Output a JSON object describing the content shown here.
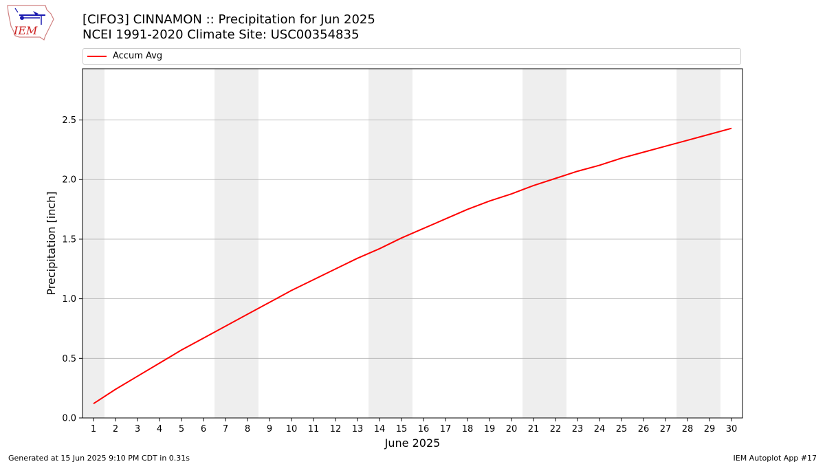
{
  "header": {
    "title_line1": "[CIFO3] CINNAMON :: Precipitation for Jun 2025",
    "title_line2": "NCEI 1991-2020 Climate Site: USC00354835"
  },
  "logo": {
    "text": "IEM",
    "icon": "iem-logo"
  },
  "footer": {
    "left": "Generated at 15 Jun 2025 9:10 PM CDT in 0.31s",
    "right": "IEM Autoplot App #17"
  },
  "colors": {
    "series": "#ff0000",
    "weekend_band": "#eeeeee",
    "grid": "#b0b0b0"
  },
  "chart_data": {
    "type": "line",
    "xlabel": "June 2025",
    "ylabel": "Precipitation [inch]",
    "xlim": [
      0.5,
      30.5
    ],
    "ylim": [
      0,
      2.93
    ],
    "x_ticks": [
      1,
      2,
      3,
      4,
      5,
      6,
      7,
      8,
      9,
      10,
      11,
      12,
      13,
      14,
      15,
      16,
      17,
      18,
      19,
      20,
      21,
      22,
      23,
      24,
      25,
      26,
      27,
      28,
      29,
      30
    ],
    "y_ticks": [
      0.0,
      0.5,
      1.0,
      1.5,
      2.0,
      2.5
    ],
    "y_tick_labels": [
      "0.0",
      "0.5",
      "1.0",
      "1.5",
      "2.0",
      "2.5"
    ],
    "grid": "y-axis on",
    "legend_position": "top, above plot",
    "weekend_days": [
      1,
      7,
      8,
      14,
      15,
      21,
      22,
      28,
      29
    ],
    "series": [
      {
        "name": "Accum Avg",
        "x": [
          1,
          2,
          3,
          4,
          5,
          6,
          7,
          8,
          9,
          10,
          11,
          12,
          13,
          14,
          15,
          16,
          17,
          18,
          19,
          20,
          21,
          22,
          23,
          24,
          25,
          26,
          27,
          28,
          29,
          30
        ],
        "values": [
          0.12,
          0.24,
          0.35,
          0.46,
          0.57,
          0.67,
          0.77,
          0.87,
          0.97,
          1.07,
          1.16,
          1.25,
          1.34,
          1.42,
          1.51,
          1.59,
          1.67,
          1.75,
          1.82,
          1.88,
          1.95,
          2.01,
          2.07,
          2.12,
          2.18,
          2.23,
          2.28,
          2.33,
          2.38,
          2.43
        ]
      }
    ]
  }
}
